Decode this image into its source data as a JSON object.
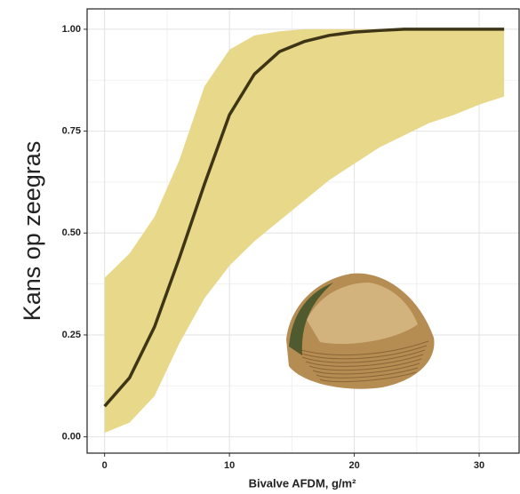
{
  "chart_data": {
    "type": "line",
    "y_label": "Kans op zeegras",
    "x_label": "Bivalve AFDM, g/m²",
    "x": [
      0,
      2,
      4,
      6,
      8,
      10,
      12,
      14,
      16,
      18,
      20,
      22,
      24,
      26,
      28,
      30,
      32
    ],
    "values": [
      0.075,
      0.145,
      0.27,
      0.44,
      0.62,
      0.79,
      0.89,
      0.945,
      0.97,
      0.985,
      0.993,
      0.997,
      1.0,
      1.0,
      1.0,
      1.0,
      1.0
    ],
    "band_lower": [
      0.01,
      0.035,
      0.1,
      0.23,
      0.34,
      0.42,
      0.48,
      0.53,
      0.58,
      0.63,
      0.67,
      0.71,
      0.74,
      0.77,
      0.79,
      0.815,
      0.835
    ],
    "band_upper": [
      0.39,
      0.45,
      0.54,
      0.68,
      0.86,
      0.95,
      0.985,
      0.995,
      1.0,
      1.0,
      1.0,
      1.0,
      1.0,
      1.0,
      1.0,
      1.0,
      1.0
    ],
    "color": "#3d3515",
    "band_color": "#e8d88a",
    "xlim": [
      -1.4,
      33.2
    ],
    "ylim": [
      -0.04,
      1.05
    ],
    "xticks": [
      0,
      10,
      20,
      30
    ],
    "yticks": [
      {
        "value": 0,
        "label": "0.00"
      },
      {
        "value": 0.25,
        "label": "0.25"
      },
      {
        "value": 0.5,
        "label": "0.50"
      },
      {
        "value": 0.75,
        "label": "0.75"
      },
      {
        "value": 1,
        "label": "1.00"
      }
    ],
    "grid": true
  }
}
